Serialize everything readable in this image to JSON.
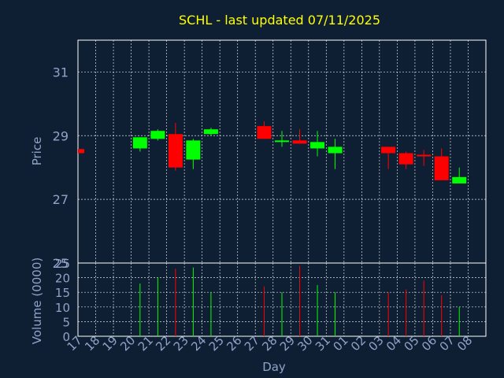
{
  "colors": {
    "background": "#0f1f33",
    "title": "#ffff00",
    "axis_text": "#8fa3c8",
    "grid": "#ffffff",
    "up": "#00ff00",
    "down": "#ff0000"
  },
  "chart_data": [
    {
      "type": "candlestick",
      "title": "SCHL - last updated 07/11/2025",
      "ylabel": "Price",
      "ylim": [
        25,
        32
      ],
      "yticks": [
        25,
        27,
        29,
        31
      ],
      "x_tick_labels": [
        "17",
        "18",
        "19",
        "20",
        "21",
        "22",
        "23",
        "24",
        "25",
        "26",
        "27",
        "28",
        "29",
        "30",
        "31",
        "01",
        "02",
        "03",
        "04",
        "05",
        "06",
        "07",
        "08"
      ],
      "grid": true,
      "candles": [
        {
          "day": "17",
          "open": 28.58,
          "close": 28.45,
          "high": 28.58,
          "low": 28.45,
          "direction": "down"
        },
        {
          "day": "20",
          "open": 28.6,
          "close": 28.95,
          "high": 28.95,
          "low": 28.5,
          "direction": "up"
        },
        {
          "day": "21",
          "open": 28.9,
          "close": 29.15,
          "high": 29.2,
          "low": 28.85,
          "direction": "up"
        },
        {
          "day": "22",
          "open": 29.05,
          "close": 28.0,
          "high": 29.4,
          "low": 27.9,
          "direction": "down"
        },
        {
          "day": "23",
          "open": 28.25,
          "close": 28.85,
          "high": 28.9,
          "low": 27.95,
          "direction": "up"
        },
        {
          "day": "24",
          "open": 29.05,
          "close": 29.2,
          "high": 29.25,
          "low": 29.0,
          "direction": "up"
        },
        {
          "day": "27",
          "open": 29.3,
          "close": 28.9,
          "high": 29.45,
          "low": 28.9,
          "direction": "down"
        },
        {
          "day": "28",
          "open": 28.8,
          "close": 28.85,
          "high": 29.15,
          "low": 28.65,
          "direction": "up"
        },
        {
          "day": "29",
          "open": 28.85,
          "close": 28.75,
          "high": 29.2,
          "low": 28.75,
          "direction": "down"
        },
        {
          "day": "30",
          "open": 28.6,
          "close": 28.8,
          "high": 29.15,
          "low": 28.35,
          "direction": "up"
        },
        {
          "day": "31",
          "open": 28.45,
          "close": 28.65,
          "high": 28.9,
          "low": 27.95,
          "direction": "up"
        },
        {
          "day": "03",
          "open": 28.65,
          "close": 28.45,
          "high": 28.65,
          "low": 27.95,
          "direction": "down"
        },
        {
          "day": "04",
          "open": 28.45,
          "close": 28.1,
          "high": 28.5,
          "low": 27.95,
          "direction": "down"
        },
        {
          "day": "05",
          "open": 28.4,
          "close": 28.35,
          "high": 28.55,
          "low": 28.05,
          "direction": "down"
        },
        {
          "day": "06",
          "open": 28.35,
          "close": 27.6,
          "high": 28.6,
          "low": 27.6,
          "direction": "down"
        },
        {
          "day": "07",
          "open": 27.5,
          "close": 27.7,
          "high": 28.0,
          "low": 27.5,
          "direction": "up"
        }
      ]
    },
    {
      "type": "bar",
      "xlabel": "Day",
      "ylabel": "Volume (0000)",
      "ylim": [
        0,
        25
      ],
      "yticks": [
        0,
        5,
        10,
        15,
        20,
        25
      ],
      "categories": [
        "20",
        "21",
        "22",
        "23",
        "24",
        "27",
        "28",
        "29",
        "30",
        "31",
        "03",
        "04",
        "05",
        "06",
        "07"
      ],
      "values": [
        18,
        20,
        23,
        23.5,
        15,
        17,
        15,
        24,
        17.5,
        15,
        15,
        16,
        19,
        14,
        10
      ],
      "directions": [
        "up",
        "up",
        "down",
        "up",
        "up",
        "down",
        "up",
        "down",
        "up",
        "up",
        "down",
        "down",
        "down",
        "down",
        "up"
      ]
    }
  ]
}
